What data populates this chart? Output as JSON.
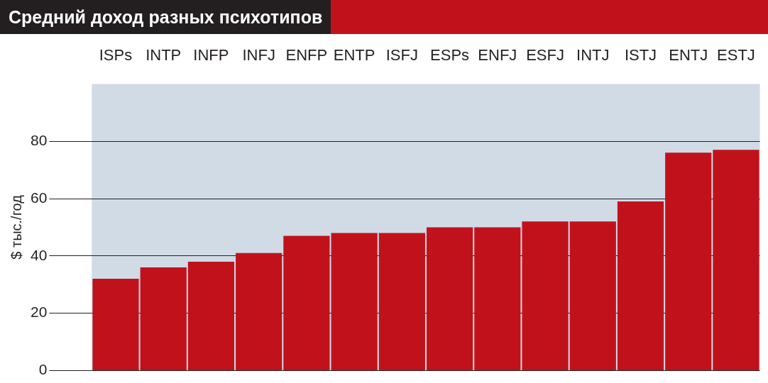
{
  "chart_data": {
    "type": "bar",
    "title": "Средний доход разных психотипов",
    "ylabel": "$ тыс./год",
    "categories": [
      "ISPs",
      "INTP",
      "INFP",
      "INFJ",
      "ENFP",
      "ENTP",
      "ISFJ",
      "ESPs",
      "ENFJ",
      "ESFJ",
      "INTJ",
      "ISTJ",
      "ENTJ",
      "ESTJ"
    ],
    "values": [
      32,
      36,
      38,
      41,
      47,
      48,
      48,
      50,
      50,
      52,
      52,
      59,
      76,
      77
    ],
    "color": "#c1121c",
    "ylim": [
      0,
      100
    ],
    "yticks": [
      0,
      20,
      40,
      60,
      80
    ],
    "grid": "y"
  }
}
